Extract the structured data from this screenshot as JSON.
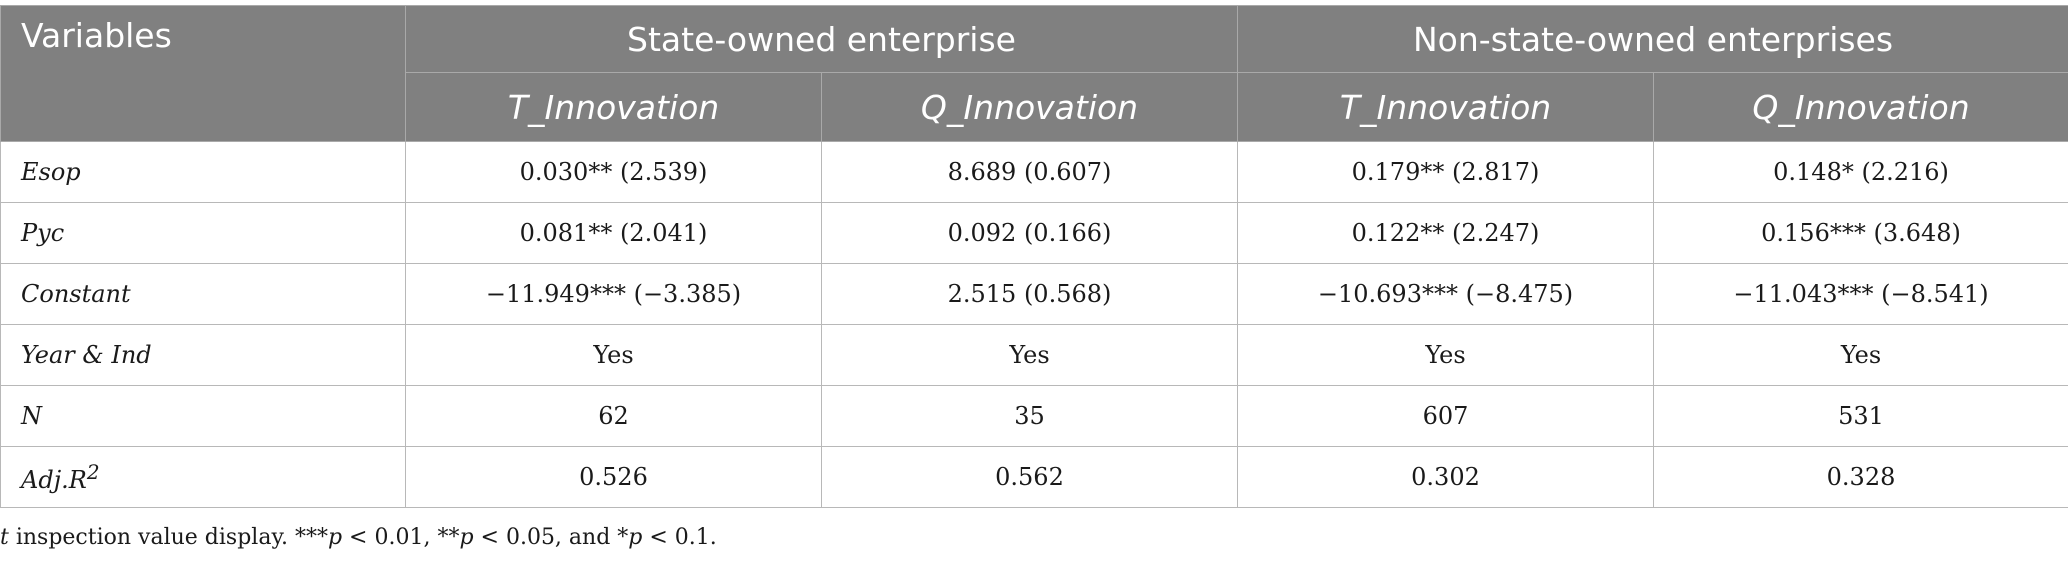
{
  "table": {
    "variables_header": "Variables",
    "groups": [
      "State-owned enterprise",
      "Non-state-owned enterprises"
    ],
    "subheaders": [
      "T_Innovation",
      "Q_Innovation",
      "T_Innovation",
      "Q_Innovation"
    ],
    "rows": [
      {
        "label": "Esop",
        "values": [
          "0.030** (2.539)",
          "8.689 (0.607)",
          "0.179** (2.817)",
          "0.148* (2.216)"
        ]
      },
      {
        "label": "Pyc",
        "values": [
          "0.081** (2.041)",
          "0.092 (0.166)",
          "0.122** (2.247)",
          "0.156*** (3.648)"
        ]
      },
      {
        "label": "Constant",
        "values": [
          "−11.949*** (−3.385)",
          "2.515 (0.568)",
          "−10.693*** (−8.475)",
          "−11.043*** (−8.541)"
        ]
      },
      {
        "label": "Year & Ind",
        "values": [
          "Yes",
          "Yes",
          "Yes",
          "Yes"
        ]
      },
      {
        "label": "N",
        "values": [
          "62",
          "35",
          "607",
          "531"
        ]
      },
      {
        "label": "Adj.R",
        "label_sup": "2",
        "values": [
          "0.526",
          "0.562",
          "0.302",
          "0.328"
        ]
      }
    ]
  },
  "footnote": {
    "t": "t",
    "text1": " inspection value display. ***",
    "p1": "p",
    "text2": " < 0.01, **",
    "p2": "p",
    "text3": " < 0.05, and *",
    "p3": "p",
    "text4": " < 0.1."
  }
}
